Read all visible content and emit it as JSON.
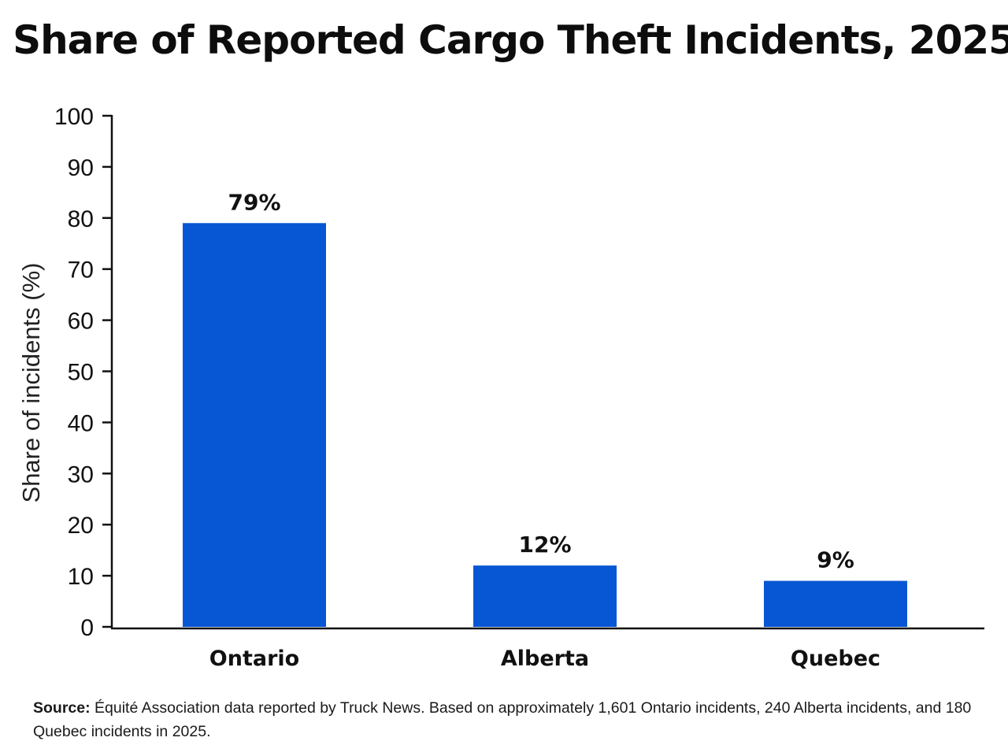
{
  "chart_data": {
    "type": "bar",
    "title": "Share of Reported Cargo Theft Incidents, 2025",
    "xlabel": "",
    "ylabel": "Share of incidents (%)",
    "ylim": [
      0,
      100
    ],
    "yticks": [
      "0",
      "10",
      "20",
      "30",
      "40",
      "50",
      "60",
      "70",
      "80",
      "90",
      "100"
    ],
    "categories": [
      "Ontario",
      "Alberta",
      "Quebec"
    ],
    "values": [
      79,
      12,
      9
    ],
    "data_labels": [
      "79%",
      "12%",
      "9%"
    ],
    "bar_color": "#0757d4",
    "grid": false,
    "legend": "none"
  },
  "source": {
    "prefix": "Source:",
    "text": " Équité Association data reported by Truck News. Based on approximately 1,601 Ontario incidents, 240 Alberta incidents, and 180 Quebec incidents in 2025."
  }
}
